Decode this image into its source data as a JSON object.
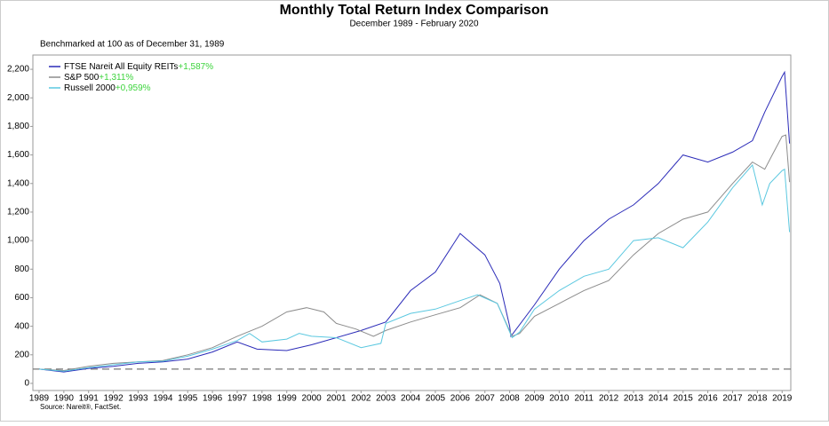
{
  "chart_data": {
    "type": "line",
    "title": "Monthly Total Return Index Comparison",
    "subtitle": "December 1989 - February 2020",
    "note": "Benchmarked at 100 as of December 31, 1989",
    "source": "Source: Nareit®, FactSet.",
    "reference_line": 100,
    "xlim": [
      1988.75,
      2019.35
    ],
    "xticks": [
      1989,
      1990,
      1991,
      1992,
      1993,
      1994,
      1995,
      1996,
      1997,
      1998,
      1999,
      2000,
      2001,
      2002,
      2003,
      2004,
      2005,
      2006,
      2007,
      2008,
      2009,
      2010,
      2011,
      2012,
      2013,
      2014,
      2015,
      2016,
      2017,
      2018,
      2019
    ],
    "ylim": [
      -50,
      2300
    ],
    "yticks": [
      0,
      200,
      400,
      600,
      800,
      {
        "value": 1000,
        "label": "1,000"
      },
      {
        "value": 1200,
        "label": "1,200"
      },
      {
        "value": 1400,
        "label": "1,400"
      },
      {
        "value": 1600,
        "label": "1,600"
      },
      {
        "value": 1800,
        "label": "1,800"
      },
      {
        "value": 2000,
        "label": "2,000"
      },
      {
        "value": 2200,
        "label": "2,200"
      }
    ],
    "series": [
      {
        "name": "FTSE Nareit All Equity REITs",
        "return_label": "+1,587%",
        "color": "#2b2bb8",
        "x": [
          1989,
          1990,
          1991,
          1992,
          1993,
          1994,
          1995,
          1996,
          1997,
          1997.8,
          1999,
          2000,
          2001,
          2002,
          2003,
          2004,
          2005,
          2006,
          2007,
          2007.6,
          2008.0,
          2008.05,
          2009,
          2010,
          2011,
          2012,
          2013,
          2014,
          2015,
          2016,
          2017,
          2017.8,
          2018.3,
          2019.0,
          2019.1,
          2019.3
        ],
        "values": [
          100,
          80,
          105,
          120,
          140,
          150,
          170,
          220,
          290,
          240,
          230,
          270,
          320,
          370,
          430,
          650,
          780,
          1050,
          900,
          700,
          400,
          330,
          550,
          800,
          1000,
          1150,
          1250,
          1400,
          1600,
          1550,
          1620,
          1700,
          1900,
          2150,
          2180,
          1680
        ]
      },
      {
        "name": "S&P 500",
        "return_label": "+1,311%",
        "color": "#8c8c8c",
        "x": [
          1989,
          1990,
          1991,
          1992,
          1993,
          1994,
          1995,
          1996,
          1997,
          1998,
          1999,
          1999.8,
          2000.5,
          2001,
          2001.8,
          2002.5,
          2003,
          2004,
          2005,
          2006,
          2006.8,
          2007.5,
          2008.1,
          2008.4,
          2009,
          2010,
          2011,
          2012,
          2013,
          2014,
          2015,
          2016,
          2017,
          2017.8,
          2018.3,
          2018.6,
          2019.0,
          2019.15,
          2019.3
        ],
        "values": [
          100,
          90,
          120,
          140,
          150,
          160,
          200,
          250,
          330,
          400,
          500,
          530,
          500,
          420,
          380,
          330,
          370,
          430,
          480,
          530,
          620,
          560,
          330,
          350,
          470,
          560,
          650,
          720,
          900,
          1050,
          1150,
          1200,
          1400,
          1550,
          1500,
          1600,
          1730,
          1740,
          1410
        ]
      },
      {
        "name": "Russell 2000",
        "return_label": "+0,959%",
        "color": "#5bc8e0",
        "x": [
          1989,
          1990,
          1991,
          1992,
          1993,
          1994,
          1995,
          1996,
          1997,
          1997.5,
          1998,
          1999,
          1999.5,
          2000,
          2001,
          2002,
          2002.8,
          2003,
          2004,
          2005,
          2006,
          2006.7,
          2007.5,
          2008.1,
          2008.4,
          2009,
          2010,
          2011,
          2012,
          2013,
          2014,
          2015,
          2016,
          2017,
          2017.8,
          2018.2,
          2018.5,
          2019.0,
          2019.1,
          2019.3
        ],
        "values": [
          100,
          85,
          110,
          130,
          150,
          155,
          190,
          240,
          300,
          350,
          290,
          310,
          350,
          330,
          320,
          250,
          280,
          420,
          490,
          520,
          580,
          620,
          560,
          320,
          360,
          520,
          650,
          750,
          800,
          1000,
          1020,
          950,
          1130,
          1370,
          1530,
          1250,
          1400,
          1490,
          1500,
          1060
        ]
      }
    ]
  }
}
